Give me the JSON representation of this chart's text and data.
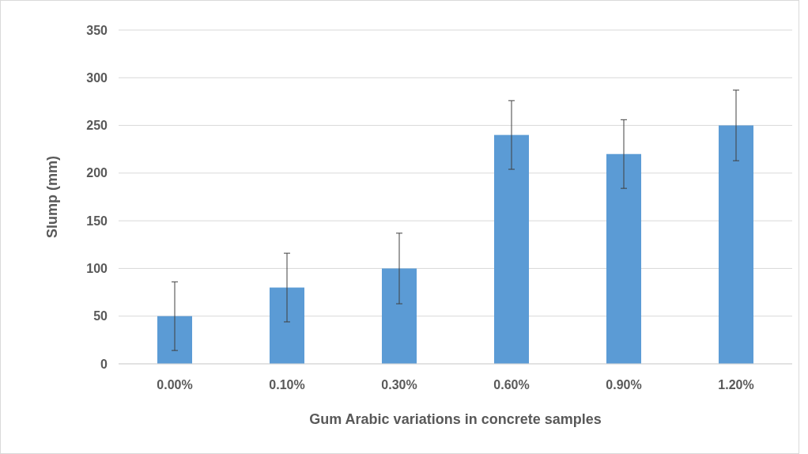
{
  "chart_data": {
    "type": "bar",
    "xlabel": "Gum Arabic variations in concrete samples",
    "ylabel": "Slump (mm)",
    "categories": [
      "0.00%",
      "0.10%",
      "0.30%",
      "0.60%",
      "0.90%",
      "1.20%"
    ],
    "values": [
      50,
      80,
      100,
      240,
      220,
      250
    ],
    "errors": [
      36,
      36,
      37,
      36,
      36,
      37
    ],
    "color": "#5b9bd5",
    "ylim": [
      0,
      350
    ],
    "yticks": [
      0,
      50,
      100,
      150,
      200,
      250,
      300,
      350
    ],
    "grid": "y"
  }
}
